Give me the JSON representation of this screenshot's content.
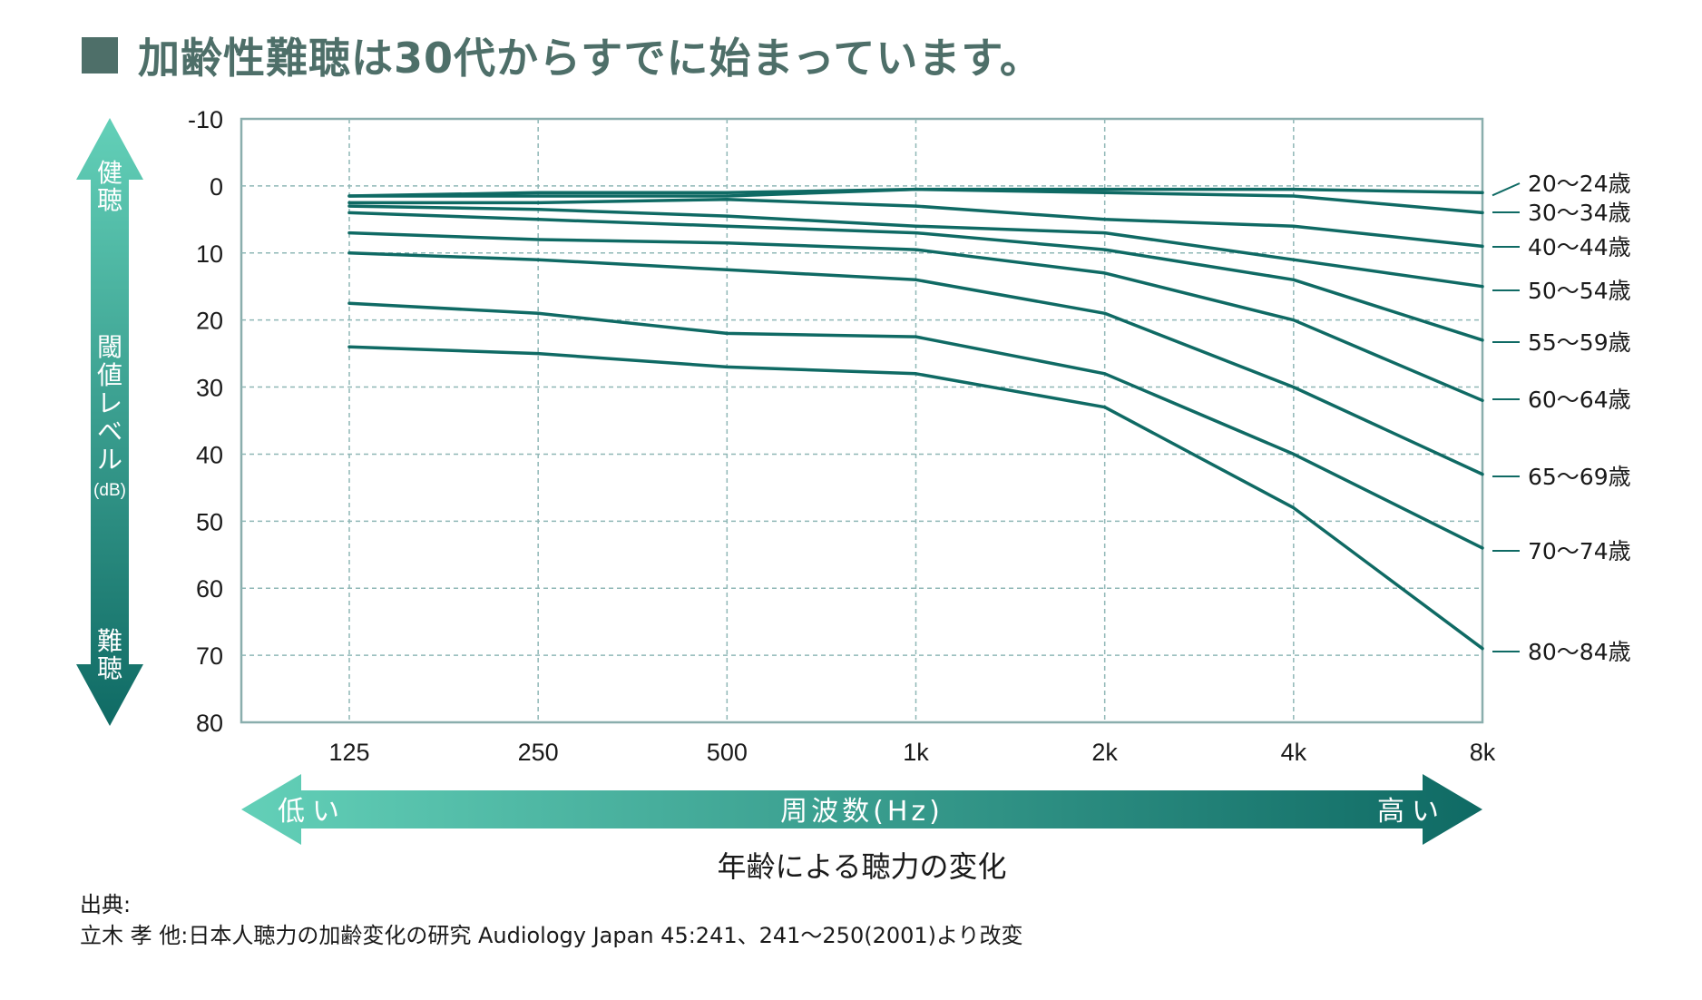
{
  "title": "加齢性難聴は30代からすでに始まっています。",
  "y_arrow": {
    "top_label": "健聴",
    "middle_label": "閾値レベル",
    "unit": "(dB)",
    "bottom_label": "難聴"
  },
  "x_arrow": {
    "left_label": "低い",
    "center_label": "周波数(Hz)",
    "right_label": "高い"
  },
  "subtitle": "年齢による聴力の変化",
  "source": {
    "line1": "出典:",
    "line2": "立木 孝 他:日本人聴力の加齢変化の研究 Audiology Japan 45:241、241～250(2001)より改変"
  },
  "colors": {
    "line": "#0f6a64",
    "axis": "#8aaead",
    "grid": "#8fb7b6",
    "title": "#4e6f69",
    "arrow_light": "#63d0b8",
    "arrow_dark": "#0f6a64"
  },
  "chart_data": {
    "type": "line",
    "xlabel": "周波数(Hz)",
    "ylabel": "閾値レベル(dB)",
    "x_scale": "log2",
    "y_inverted": true,
    "categories": [
      "125",
      "250",
      "500",
      "1k",
      "2k",
      "4k",
      "8k"
    ],
    "x_hz": [
      125,
      250,
      500,
      1000,
      2000,
      4000,
      8000
    ],
    "y_ticks": [
      "-10",
      "0",
      "10",
      "20",
      "30",
      "40",
      "50",
      "60",
      "70",
      "80"
    ],
    "ylim": [
      -10,
      80
    ],
    "grid": true,
    "series": [
      {
        "name": "20～24歳",
        "values": [
          1.5,
          1.0,
          1.0,
          0.5,
          0.5,
          0.5,
          1.0
        ]
      },
      {
        "name": "30～34歳",
        "values": [
          1.5,
          1.5,
          1.5,
          0.5,
          1.0,
          1.5,
          4.0
        ]
      },
      {
        "name": "40～44歳",
        "values": [
          2.5,
          2.5,
          2.0,
          3.0,
          5.0,
          6.0,
          9.0
        ]
      },
      {
        "name": "50～54歳",
        "values": [
          3.0,
          3.5,
          4.5,
          6.0,
          7.0,
          11.0,
          15.0
        ]
      },
      {
        "name": "55～59歳",
        "values": [
          4.0,
          5.0,
          6.0,
          7.0,
          9.5,
          14.0,
          23.0
        ]
      },
      {
        "name": "60～64歳",
        "values": [
          7.0,
          8.0,
          8.5,
          9.5,
          13.0,
          20.0,
          32.0
        ]
      },
      {
        "name": "65～69歳",
        "values": [
          10.0,
          11.0,
          12.5,
          14.0,
          19.0,
          30.0,
          43.0
        ]
      },
      {
        "name": "70～74歳",
        "values": [
          17.5,
          19.0,
          22.0,
          22.5,
          28.0,
          40.0,
          54.0
        ]
      },
      {
        "name": "80～84歳",
        "values": [
          24.0,
          25.0,
          27.0,
          28.0,
          33.0,
          48.0,
          69.0
        ]
      }
    ]
  }
}
